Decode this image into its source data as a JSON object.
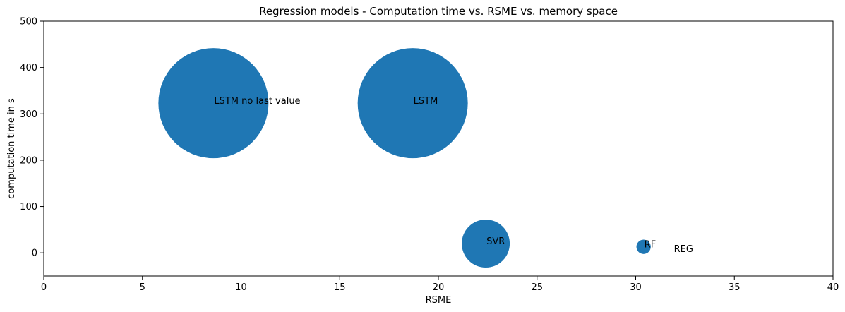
{
  "chart_data": {
    "type": "scatter",
    "title": "Regression models - Computation time vs. RSME vs. memory space",
    "xlabel": "RSME",
    "ylabel": "computation time in s",
    "xlim": [
      0,
      40
    ],
    "ylim": [
      -50,
      500
    ],
    "xticks": [
      0,
      5,
      10,
      15,
      20,
      25,
      30,
      35,
      40
    ],
    "yticks": [
      0,
      100,
      200,
      300,
      400,
      500
    ],
    "grid": false,
    "color": "#1f77b4",
    "points": [
      {
        "label": "LSTM no last value",
        "x": 8.6,
        "y": 323,
        "size": 100
      },
      {
        "label": "LSTM",
        "x": 18.7,
        "y": 323,
        "size": 100
      },
      {
        "label": "SVR",
        "x": 22.4,
        "y": 20,
        "size": 19
      },
      {
        "label": "RF",
        "x": 30.4,
        "y": 13,
        "size": 1.7
      },
      {
        "label": "REG",
        "x": 31.9,
        "y": 3,
        "size": 0
      }
    ]
  }
}
